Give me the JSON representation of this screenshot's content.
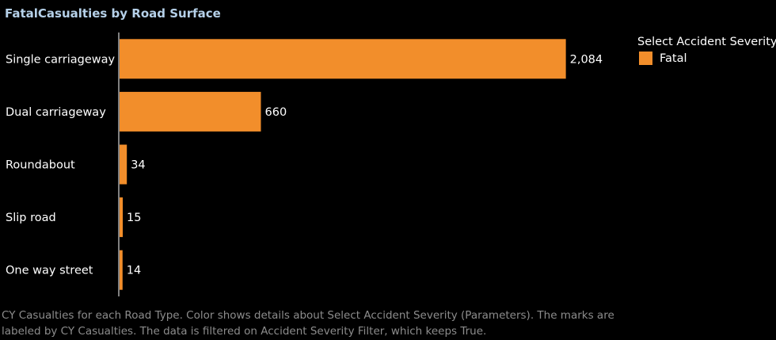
{
  "colors": {
    "bar": "#f28e2b",
    "background": "#000000",
    "title": "#b5d0e8"
  },
  "chart_data": {
    "type": "bar",
    "orientation": "horizontal",
    "title": "FatalCasualties by Road Surface",
    "categories": [
      "Single carriageway",
      "Dual carriageway",
      "Roundabout",
      "Slip road",
      "One way street"
    ],
    "values": [
      2084,
      660,
      34,
      15,
      14
    ],
    "value_labels": [
      "2,084",
      "660",
      "34",
      "15",
      "14"
    ],
    "xlabel": "",
    "ylabel": "",
    "xlim": [
      0,
      2200
    ],
    "grid": false,
    "legend": {
      "title": "Select Accident Severity",
      "items": [
        {
          "label": "Fatal",
          "color": "#f28e2b"
        }
      ],
      "placement": "top-right"
    }
  },
  "caption": "CY Casualties for each Road Type.  Color shows details about Select Accident Severity (Parameters).  The marks are labeled by CY Casualties. The data is filtered on Accident Severity Filter, which keeps True."
}
